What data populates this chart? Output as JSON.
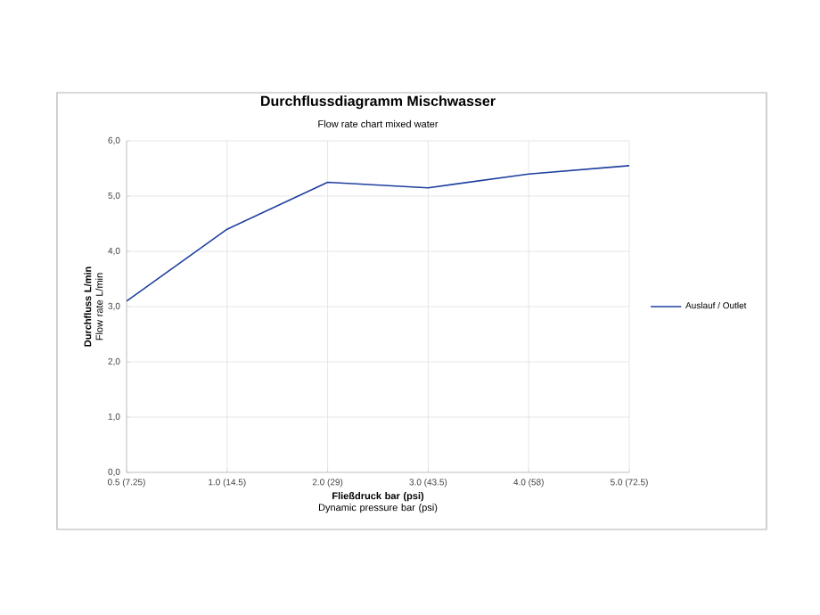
{
  "chart_data": {
    "type": "line",
    "title": "Durchflussdiagramm Mischwasser",
    "subtitle": "Flow rate chart mixed water",
    "xlabel": "**Fließdruck bar (psi)** Dynamic pressure bar (psi)",
    "ylabel": "**Durchfluss L/min** Flow rate L/min",
    "categories": [
      "0.5 (7.25)",
      "1.0 (14.5)",
      "2.0 (29)",
      "3.0 (43.5)",
      "4.0 (58)",
      "5.0 (72.5)"
    ],
    "series": [
      {
        "name": "Auslauf / Outlet",
        "color": "#1f3f9f",
        "values": [
          3.1,
          4.4,
          5.25,
          5.15,
          5.4,
          5.55
        ]
      }
    ],
    "ylim": [
      0,
      6
    ],
    "yticks": [
      {
        "value": 0,
        "label": "0,0"
      },
      {
        "value": 1,
        "label": "1,0"
      },
      {
        "value": 2,
        "label": "2,0"
      },
      {
        "value": 3,
        "label": "3,0"
      },
      {
        "value": 4,
        "label": "4,0"
      },
      {
        "value": 5,
        "label": "5,0"
      },
      {
        "value": 6,
        "label": "6,0"
      }
    ],
    "grid": true,
    "legend": "right",
    "marker": "none",
    "line_style": "solid"
  }
}
